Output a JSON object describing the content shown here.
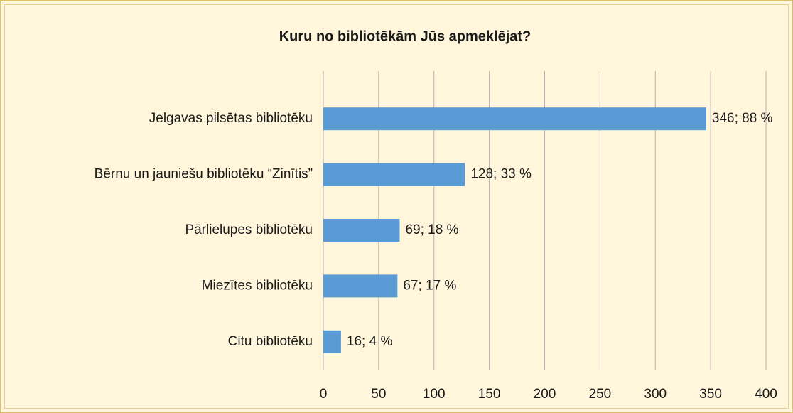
{
  "chart_data": {
    "type": "bar",
    "orientation": "horizontal",
    "title": "Kuru no bibliotēkām Jūs apmeklējat?",
    "categories": [
      "Jelgavas pilsētas bibliotēku",
      "Bērnu un jauniešu bibliotēku “Zinītis”",
      "Pārlielupes bibliotēku",
      "Miezītes bibliotēku",
      "Citu bibliotēku"
    ],
    "values": [
      346,
      128,
      69,
      67,
      16
    ],
    "value_labels": [
      "346; 88 %",
      "128; 33 %",
      "69; 18 %",
      "67; 17 %",
      "16; 4 %"
    ],
    "color": "#5b9bd5",
    "xlim": [
      0,
      400
    ],
    "xticks": [
      0,
      50,
      100,
      150,
      200,
      250,
      300,
      350,
      400
    ],
    "grid": true
  }
}
